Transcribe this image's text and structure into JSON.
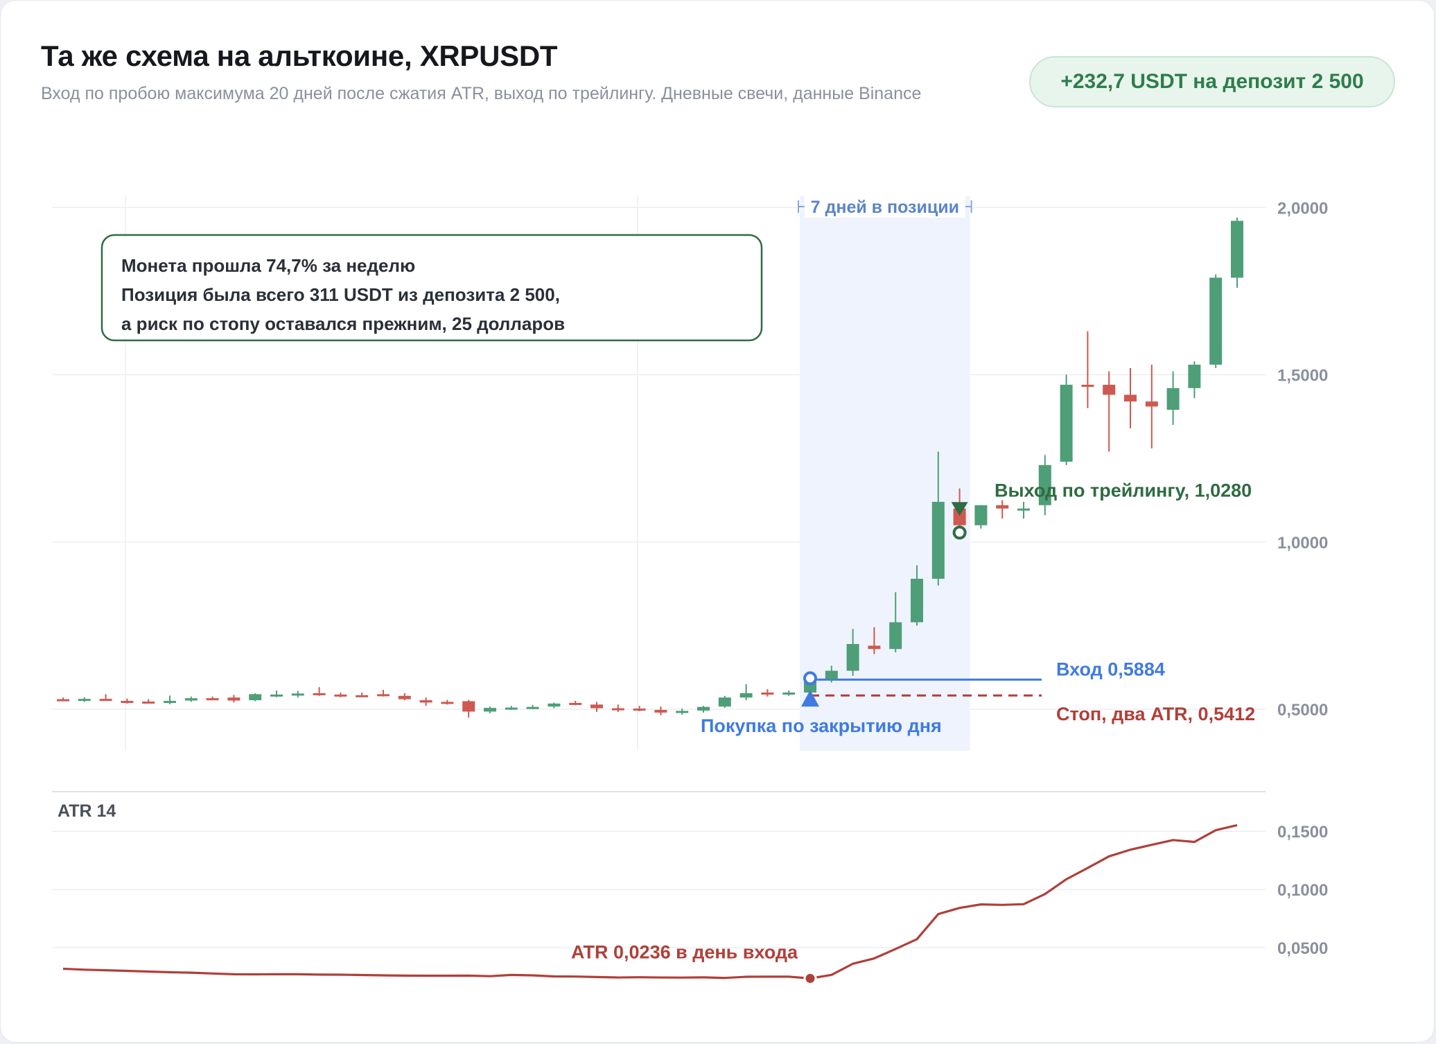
{
  "header": {
    "title": "Та же схема на альткоине, XRPUSDT",
    "subtitle": "Вход по пробою максимума 20 дней после сжатия ATR, выход по трейлингу. Дневные свечи, данные Binance",
    "badge": "+232,7 USDT на депозит 2 500"
  },
  "colors": {
    "up": "#4e9e78",
    "down": "#cd5950",
    "entry": "#3f7be0",
    "stop": "#b03f39",
    "exit": "#2f6b43",
    "atr_line": "#b03f39",
    "highlight": "#eef3fd",
    "grid": "#eceef2",
    "axis_text": "#8a909c"
  },
  "chart_data": [
    {
      "type": "candlestick",
      "symbol": "XRPUSDT",
      "ylim": [
        0.38,
        2.1
      ],
      "yticks": [
        0.5,
        1.0,
        1.5,
        2.0
      ],
      "ytick_labels": [
        "0,5000",
        "1,0000",
        "1,5000",
        "2,0000"
      ],
      "candles": [
        [
          0.53,
          0.535,
          0.524,
          0.528
        ],
        [
          0.528,
          0.536,
          0.522,
          0.531
        ],
        [
          0.531,
          0.545,
          0.525,
          0.528
        ],
        [
          0.525,
          0.532,
          0.517,
          0.523
        ],
        [
          0.523,
          0.53,
          0.517,
          0.52
        ],
        [
          0.52,
          0.541,
          0.515,
          0.525
        ],
        [
          0.526,
          0.538,
          0.522,
          0.533
        ],
        [
          0.533,
          0.538,
          0.528,
          0.531
        ],
        [
          0.535,
          0.543,
          0.52,
          0.526
        ],
        [
          0.527,
          0.548,
          0.524,
          0.545
        ],
        [
          0.542,
          0.556,
          0.536,
          0.544
        ],
        [
          0.543,
          0.555,
          0.535,
          0.547
        ],
        [
          0.548,
          0.566,
          0.54,
          0.544
        ],
        [
          0.544,
          0.55,
          0.536,
          0.542
        ],
        [
          0.542,
          0.55,
          0.536,
          0.54
        ],
        [
          0.545,
          0.558,
          0.538,
          0.54
        ],
        [
          0.54,
          0.548,
          0.527,
          0.53
        ],
        [
          0.527,
          0.535,
          0.51,
          0.52
        ],
        [
          0.522,
          0.528,
          0.514,
          0.52
        ],
        [
          0.524,
          0.528,
          0.475,
          0.493
        ],
        [
          0.493,
          0.508,
          0.488,
          0.504
        ],
        [
          0.502,
          0.51,
          0.498,
          0.505
        ],
        [
          0.505,
          0.513,
          0.5,
          0.507
        ],
        [
          0.508,
          0.52,
          0.503,
          0.517
        ],
        [
          0.519,
          0.525,
          0.512,
          0.514
        ],
        [
          0.514,
          0.522,
          0.492,
          0.503
        ],
        [
          0.503,
          0.514,
          0.492,
          0.5
        ],
        [
          0.502,
          0.51,
          0.494,
          0.497
        ],
        [
          0.498,
          0.508,
          0.482,
          0.49
        ],
        [
          0.49,
          0.502,
          0.484,
          0.495
        ],
        [
          0.496,
          0.51,
          0.49,
          0.507
        ],
        [
          0.508,
          0.54,
          0.504,
          0.535
        ],
        [
          0.535,
          0.575,
          0.527,
          0.548
        ],
        [
          0.55,
          0.56,
          0.538,
          0.545
        ],
        [
          0.548,
          0.556,
          0.54,
          0.55
        ],
        [
          0.55,
          0.592,
          0.548,
          0.5884
        ],
        [
          0.59,
          0.63,
          0.58,
          0.615
        ],
        [
          0.615,
          0.74,
          0.6,
          0.695
        ],
        [
          0.69,
          0.745,
          0.665,
          0.68
        ],
        [
          0.68,
          0.85,
          0.67,
          0.76
        ],
        [
          0.76,
          0.93,
          0.75,
          0.89
        ],
        [
          0.89,
          1.27,
          0.87,
          1.12
        ],
        [
          1.1,
          1.16,
          1.03,
          1.05
        ],
        [
          1.05,
          1.11,
          1.04,
          1.11
        ],
        [
          1.11,
          1.125,
          1.07,
          1.1
        ],
        [
          1.1,
          1.12,
          1.07,
          1.1
        ],
        [
          1.11,
          1.26,
          1.08,
          1.23
        ],
        [
          1.24,
          1.5,
          1.23,
          1.47
        ],
        [
          1.47,
          1.63,
          1.4,
          1.465
        ],
        [
          1.47,
          1.51,
          1.27,
          1.44
        ],
        [
          1.44,
          1.52,
          1.34,
          1.42
        ],
        [
          1.42,
          1.53,
          1.28,
          1.405
        ],
        [
          1.395,
          1.51,
          1.35,
          1.46
        ],
        [
          1.46,
          1.54,
          1.43,
          1.53
        ],
        [
          1.53,
          1.8,
          1.52,
          1.79
        ],
        [
          1.79,
          1.97,
          1.76,
          1.96
        ]
      ],
      "highlight_window": {
        "start_index": 35,
        "end_index": 42,
        "label": "7 дней в позиции"
      },
      "entry": {
        "index": 35,
        "price": 0.5884,
        "label": "Вход 0,5884",
        "marker_label": "Покупка по закрытию дня"
      },
      "stop": {
        "price": 0.5412,
        "label": "Стоп, два ATR, 0,5412"
      },
      "exit": {
        "index": 42,
        "price": 1.028,
        "label": "Выход по трейлингу, 1,0280"
      },
      "annotation": [
        "Монета прошла 74,7% за неделю",
        "Позиция была всего 311 USDT из депозита 2 500,",
        "а риск по стопу оставался прежним, 25 долларов"
      ]
    },
    {
      "type": "line",
      "label": "ATR 14",
      "ylim": [
        0.0,
        0.168
      ],
      "yticks": [
        0.05,
        0.1,
        0.15
      ],
      "ytick_labels": [
        "0,0500",
        "0,1000",
        "0,1500"
      ],
      "values": [
        0.0319,
        0.0311,
        0.0306,
        0.0301,
        0.0295,
        0.0289,
        0.0285,
        0.0278,
        0.0272,
        0.0271,
        0.0272,
        0.0272,
        0.0269,
        0.0268,
        0.0265,
        0.0262,
        0.026,
        0.0259,
        0.0259,
        0.026,
        0.0255,
        0.0266,
        0.0262,
        0.0253,
        0.0252,
        0.0248,
        0.0244,
        0.0246,
        0.0244,
        0.0243,
        0.0245,
        0.024,
        0.025,
        0.0251,
        0.0251,
        0.0236,
        0.0266,
        0.0362,
        0.0408,
        0.0489,
        0.0573,
        0.0789,
        0.0842,
        0.0872,
        0.0868,
        0.0874,
        0.0961,
        0.1088,
        0.1185,
        0.1285,
        0.1342,
        0.1384,
        0.1425,
        0.1409,
        0.151,
        0.1553
      ],
      "marker": {
        "index": 35,
        "label": "ATR 0,0236 в день входа"
      }
    }
  ]
}
